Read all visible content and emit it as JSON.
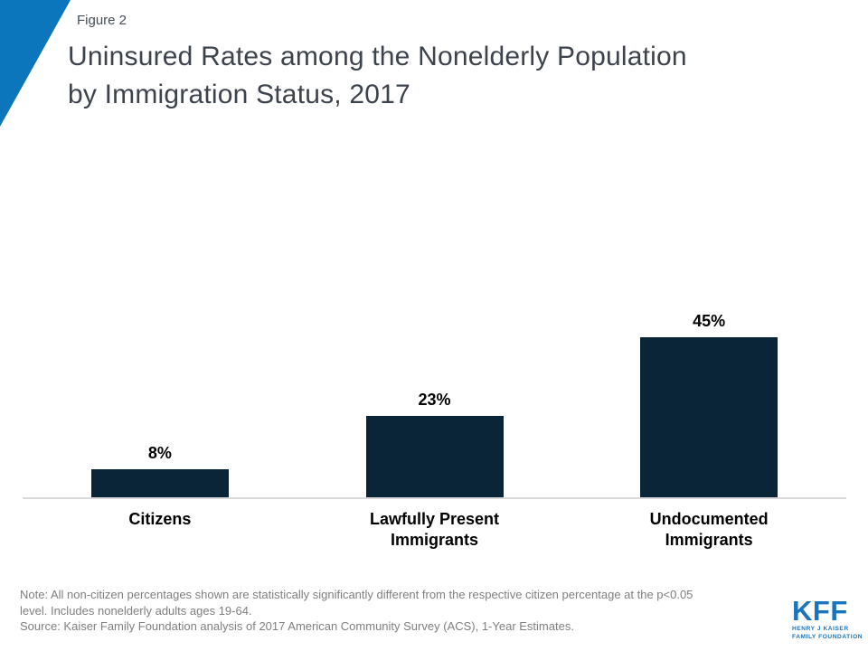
{
  "slide": {
    "figure_label": "Figure 2",
    "title_lines": [
      "Uninsured Rates among the Nonelderly Population",
      "by Immigration Status, 2017"
    ]
  },
  "chart_data": {
    "type": "bar",
    "title": "Uninsured Rates among the Nonelderly Population by Immigration Status, 2017",
    "categories": [
      "Citizens",
      "Lawfully Present Immigrants",
      "Undocumented Immigrants"
    ],
    "values": [
      8,
      23,
      45
    ],
    "value_labels": [
      "8%",
      "23%",
      "45%"
    ],
    "category_lines": [
      [
        "Citizens"
      ],
      [
        "Lawfully Present",
        "Immigrants"
      ],
      [
        "Undocumented",
        "Immigrants"
      ]
    ],
    "unit": "percent",
    "ylim": [
      0,
      50
    ],
    "grid": false,
    "legend": false,
    "xlabel": "",
    "ylabel": "",
    "bar_color": "#0a2438"
  },
  "footer": {
    "note_lines": [
      "Note: All non-citizen percentages shown are statistically significantly different from the respective citizen percentage at the p<0.05",
      "level. Includes nonelderly adults ages 19-64.",
      "Source: Kaiser Family Foundation analysis of 2017 American Community Survey (ACS), 1-Year Estimates."
    ]
  },
  "logo": {
    "acronym": "KFF",
    "subtext_line1": "HENRY J KAISER",
    "subtext_line2": "FAMILY FOUNDATION"
  },
  "colors": {
    "brand_blue": "#0b76bc",
    "bar_navy": "#0a2438",
    "title_color": "#3d434c",
    "note_gray": "#7f7f7f",
    "axis_line": "#d9d9d9",
    "logo_blue": "#1b75bb"
  }
}
